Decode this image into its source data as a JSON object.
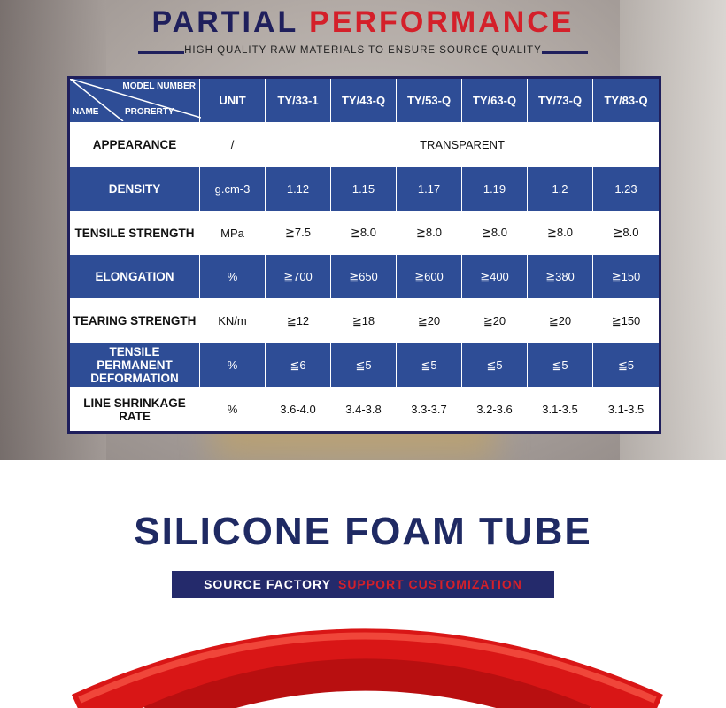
{
  "header": {
    "title_left": "PARTIAL",
    "title_right": "PERFORMANCE",
    "subtitle": "HIGH QUALITY RAW MATERIALS TO ENSURE SOURCE QUALITY"
  },
  "table": {
    "corner": {
      "top": "MODEL NUMBER",
      "left": "NAME",
      "middle": "PRORERTY"
    },
    "unit_header": "UNIT",
    "models": [
      "TY/33-1",
      "TY/43-Q",
      "TY/53-Q",
      "TY/63-Q",
      "TY/73-Q",
      "TY/83-Q"
    ],
    "rows": [
      {
        "name": "APPEARANCE",
        "unit": "/",
        "merged": "TRANSPARENT"
      },
      {
        "name": "DENSITY",
        "unit": "g.cm-3",
        "values": [
          "1.12",
          "1.15",
          "1.17",
          "1.19",
          "1.2",
          "1.23"
        ]
      },
      {
        "name": "TENSILE STRENGTH",
        "unit": "MPa",
        "values": [
          "≧7.5",
          "≧8.0",
          "≧8.0",
          "≧8.0",
          "≧8.0",
          "≧8.0"
        ]
      },
      {
        "name": "ELONGATION",
        "unit": "%",
        "values": [
          "≧700",
          "≧650",
          "≧600",
          "≧400",
          "≧380",
          "≧150"
        ]
      },
      {
        "name": "TEARING STRENGTH",
        "unit": "KN/m",
        "values": [
          "≧12",
          "≧18",
          "≧20",
          "≧20",
          "≧20",
          "≧150"
        ]
      },
      {
        "name": "TENSILE PERMANENT DEFORMATION",
        "unit": "%",
        "values": [
          "≦6",
          "≦5",
          "≦5",
          "≦5",
          "≦5",
          "≦5"
        ]
      },
      {
        "name": "LINE SHRINKAGE RATE",
        "unit": "%",
        "values": [
          "3.6-4.0",
          "3.4-3.8",
          "3.3-3.7",
          "3.2-3.6",
          "3.1-3.5",
          "3.1-3.5"
        ]
      }
    ]
  },
  "section": {
    "title": "SILICONE FOAM TUBE",
    "badge_left": "SOURCE FACTORY",
    "badge_right": "SUPPORT CUSTOMIZATION"
  }
}
